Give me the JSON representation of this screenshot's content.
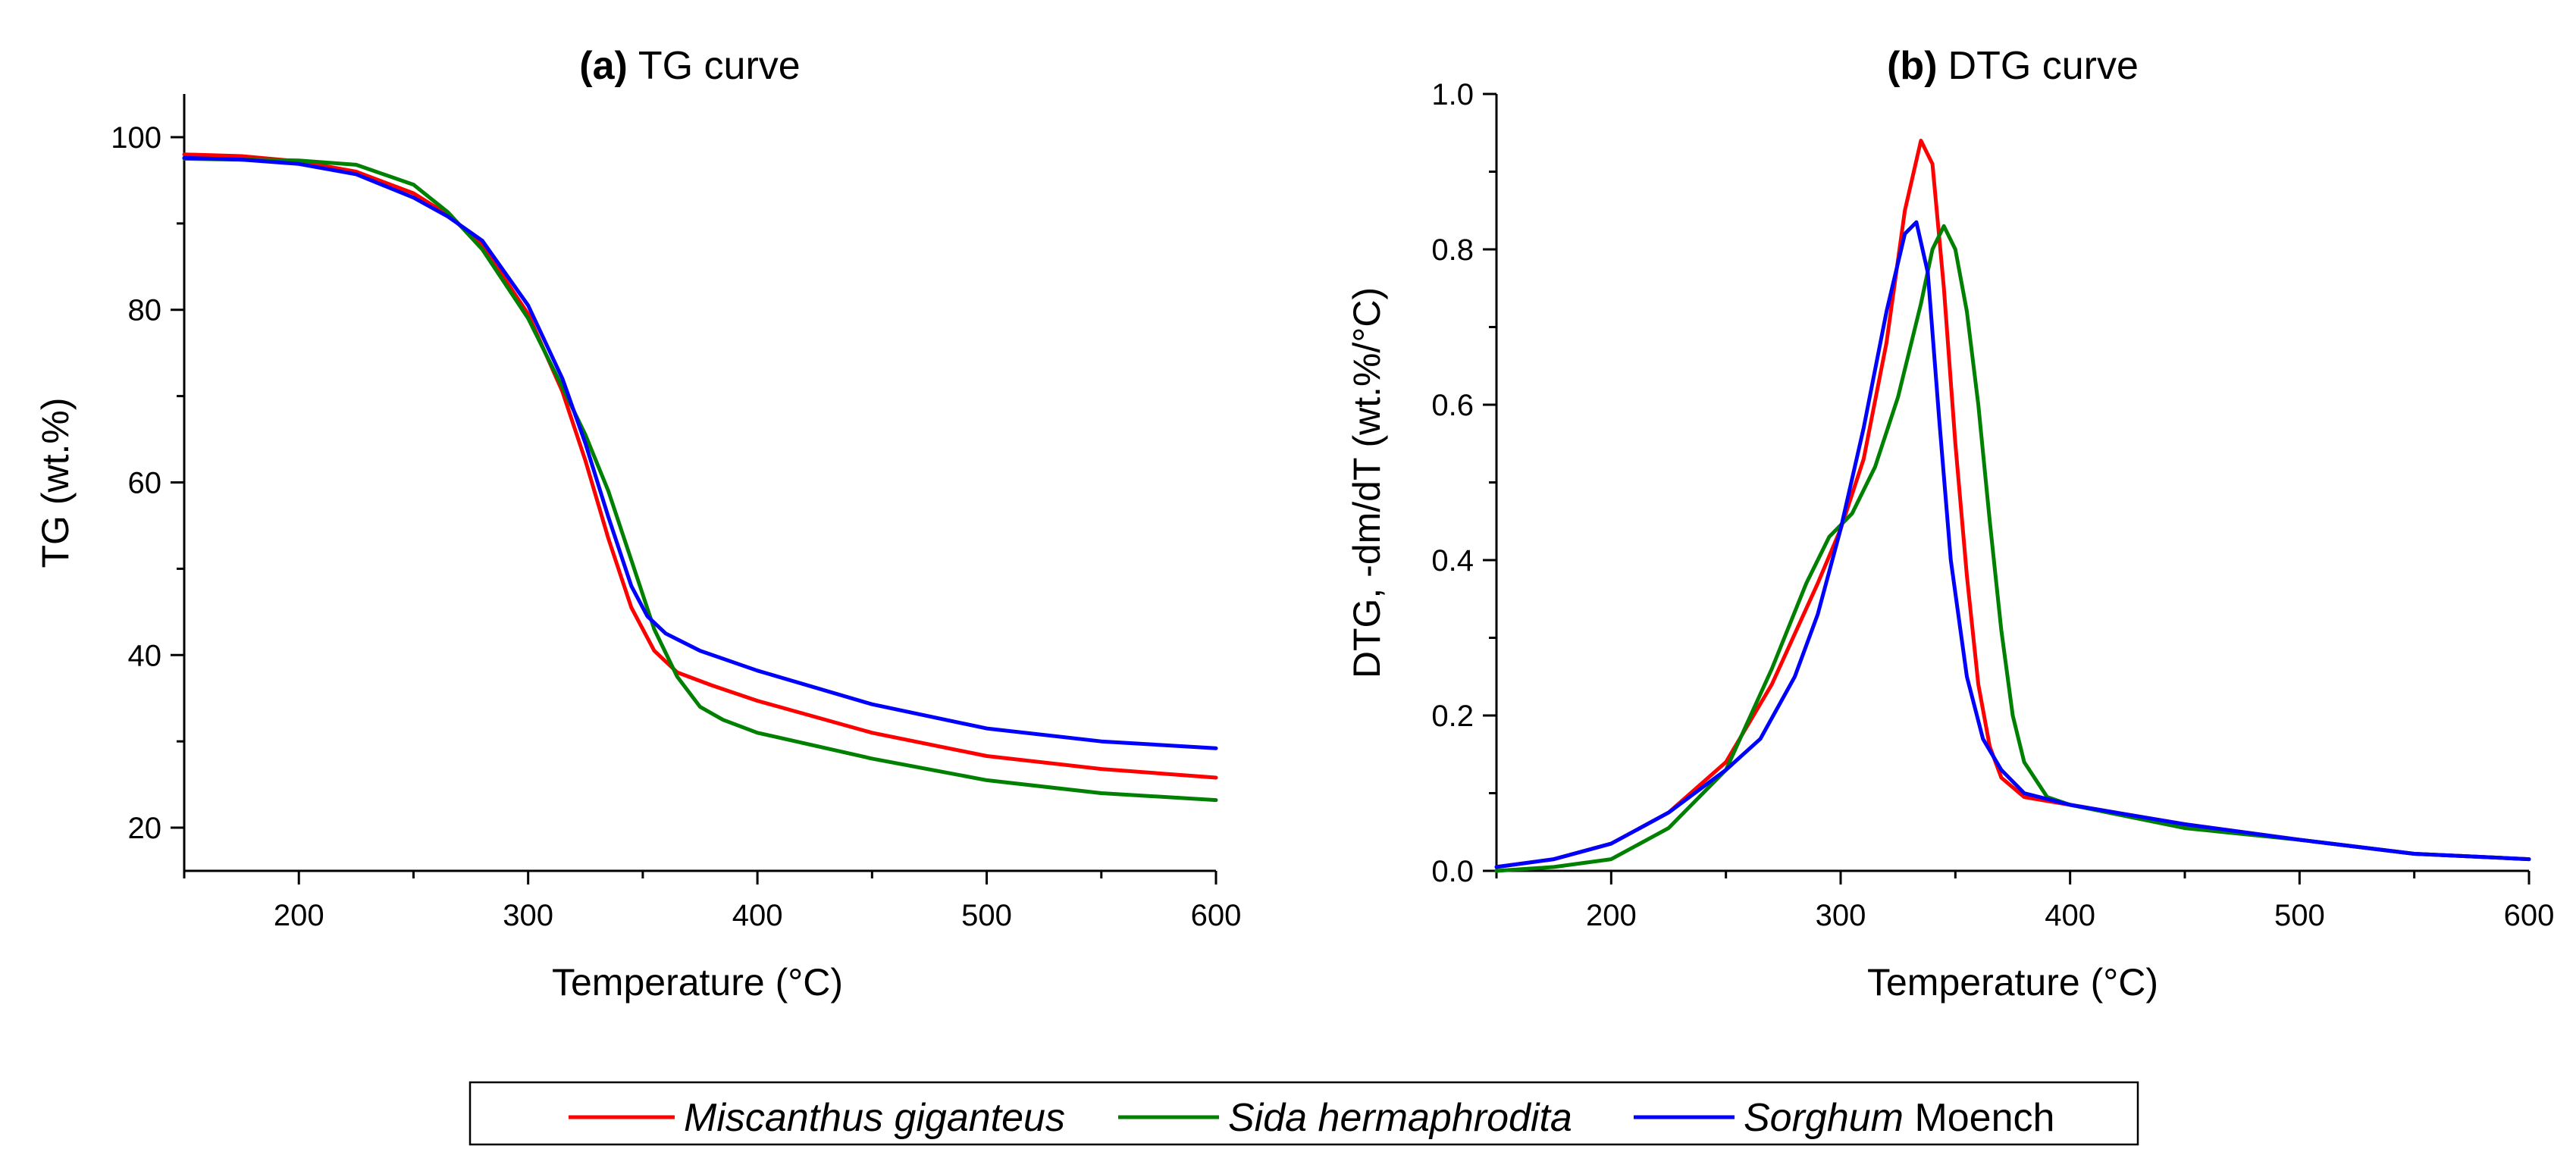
{
  "colors": {
    "Miscanthus giganteus": "#ff0000",
    "Sida hermaphrodita": "#008000",
    "Sorghum Moench": "#0000ff"
  },
  "legend": {
    "entries": [
      {
        "series": "Miscanthus giganteus",
        "italic": "Miscanthus giganteus",
        "normal": ""
      },
      {
        "series": "Sida hermaphrodita",
        "italic": "Sida hermaphrodita",
        "normal": ""
      },
      {
        "series": "Sorghum Moench",
        "italic": "Sorghum",
        "normal": " Moench"
      }
    ]
  },
  "chart_data": [
    {
      "type": "line",
      "panel_label": "(a)",
      "title": "TG curve",
      "xlabel": "Temperature (°C)",
      "ylabel": "TG (wt.%)",
      "xlim": [
        150,
        600
      ],
      "ylim": [
        15,
        105
      ],
      "xticks": [
        200,
        300,
        400,
        500,
        600
      ],
      "yticks": [
        20,
        40,
        60,
        80,
        100
      ],
      "xminor": [
        150,
        250,
        350,
        450,
        550
      ],
      "yminor": [
        30,
        50,
        70,
        90
      ],
      "series": [
        {
          "name": "Miscanthus giganteus",
          "x": [
            150,
            175,
            200,
            225,
            250,
            265,
            280,
            300,
            315,
            325,
            335,
            345,
            355,
            365,
            380,
            400,
            450,
            500,
            550,
            600
          ],
          "y": [
            98.0,
            97.8,
            97.2,
            96.0,
            93.5,
            91.0,
            87.5,
            79.5,
            70.5,
            62.5,
            53.5,
            45.5,
            40.5,
            38.0,
            36.5,
            34.7,
            31.0,
            28.3,
            26.8,
            25.8
          ]
        },
        {
          "name": "Sida hermaphrodita",
          "x": [
            150,
            175,
            200,
            225,
            250,
            265,
            280,
            300,
            315,
            325,
            335,
            345,
            355,
            365,
            375,
            385,
            400,
            450,
            500,
            550,
            600
          ],
          "y": [
            97.5,
            97.4,
            97.3,
            96.8,
            94.5,
            91.3,
            87.0,
            79.0,
            71.0,
            65.5,
            59.0,
            51.0,
            43.0,
            37.5,
            34.0,
            32.5,
            31.0,
            28.0,
            25.5,
            24.0,
            23.2
          ]
        },
        {
          "name": "Sorghum Moench",
          "x": [
            150,
            175,
            200,
            225,
            250,
            265,
            280,
            300,
            315,
            325,
            335,
            345,
            352,
            360,
            375,
            400,
            450,
            500,
            550,
            600
          ],
          "y": [
            97.6,
            97.4,
            96.9,
            95.7,
            93.0,
            90.8,
            88.0,
            80.5,
            72.0,
            64.5,
            56.0,
            48.0,
            44.5,
            42.5,
            40.5,
            38.2,
            34.3,
            31.5,
            30.0,
            29.2
          ]
        }
      ]
    },
    {
      "type": "line",
      "panel_label": "(b)",
      "title": "DTG curve",
      "xlabel": "Temperature (°C)",
      "ylabel": "DTG, -dm/dT (wt.%/°C)",
      "xlim": [
        150,
        600
      ],
      "ylim": [
        0.0,
        1.0
      ],
      "xticks": [
        200,
        300,
        400,
        500,
        600
      ],
      "yticks": [
        0.0,
        0.2,
        0.4,
        0.6,
        0.8,
        1.0
      ],
      "xminor": [
        150,
        250,
        350,
        450,
        550
      ],
      "yminor": [
        0.1,
        0.3,
        0.5,
        0.7,
        0.9
      ],
      "series": [
        {
          "name": "Miscanthus giganteus",
          "x": [
            150,
            175,
            200,
            225,
            250,
            270,
            290,
            300,
            310,
            320,
            328,
            335,
            340,
            345,
            350,
            355,
            360,
            365,
            370,
            380,
            400,
            450,
            500,
            550,
            600
          ],
          "y": [
            0.005,
            0.015,
            0.035,
            0.075,
            0.14,
            0.24,
            0.37,
            0.44,
            0.53,
            0.68,
            0.85,
            0.94,
            0.91,
            0.75,
            0.55,
            0.38,
            0.24,
            0.16,
            0.12,
            0.095,
            0.085,
            0.06,
            0.04,
            0.022,
            0.015
          ]
        },
        {
          "name": "Sida hermaphrodita",
          "x": [
            150,
            175,
            200,
            225,
            250,
            270,
            285,
            295,
            305,
            315,
            325,
            335,
            340,
            345,
            350,
            355,
            360,
            365,
            370,
            375,
            380,
            390,
            400,
            450,
            500,
            550,
            600
          ],
          "y": [
            0.0,
            0.005,
            0.015,
            0.055,
            0.13,
            0.26,
            0.37,
            0.43,
            0.46,
            0.52,
            0.61,
            0.73,
            0.8,
            0.83,
            0.8,
            0.72,
            0.6,
            0.45,
            0.31,
            0.2,
            0.14,
            0.095,
            0.085,
            0.055,
            0.04,
            0.022,
            0.015
          ]
        },
        {
          "name": "Sorghum Moench",
          "x": [
            150,
            175,
            200,
            225,
            250,
            265,
            280,
            290,
            300,
            310,
            320,
            328,
            333,
            338,
            343,
            348,
            355,
            362,
            370,
            380,
            400,
            450,
            500,
            550,
            600
          ],
          "y": [
            0.005,
            0.015,
            0.035,
            0.075,
            0.13,
            0.17,
            0.25,
            0.33,
            0.44,
            0.57,
            0.72,
            0.82,
            0.835,
            0.77,
            0.58,
            0.4,
            0.25,
            0.17,
            0.13,
            0.1,
            0.085,
            0.06,
            0.04,
            0.022,
            0.015
          ]
        }
      ]
    }
  ]
}
